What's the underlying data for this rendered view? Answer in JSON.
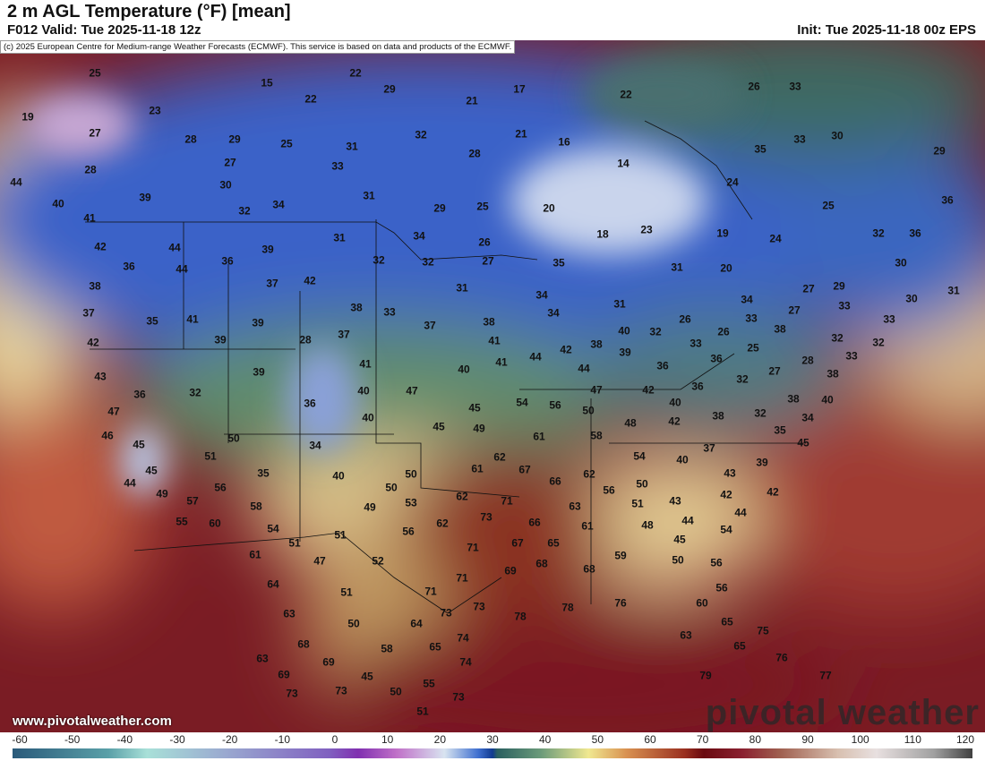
{
  "header": {
    "title": "2 m AGL Temperature (°F) [mean]",
    "valid": "F012 Valid: Tue 2025-11-18 12z",
    "init": "Init: Tue 2025-11-18 00z EPS"
  },
  "copyright": "(c) 2025 European Centre for Medium-range Weather Forecasts (ECMWF). This service is based on data and products of the ECMWF.",
  "footer": {
    "site": "www.pivotalweather.com",
    "logo": "pivotal weather"
  },
  "colorbar": {
    "unit": "°F",
    "ticks": [
      "-60",
      "-50",
      "-40",
      "-30",
      "-20",
      "-10",
      "0",
      "10",
      "20",
      "30",
      "40",
      "50",
      "60",
      "70",
      "80",
      "90",
      "100",
      "110",
      "120"
    ]
  },
  "map": {
    "labels": [
      "25",
      "22",
      "15",
      "29",
      "22",
      "21",
      "17",
      "22",
      "26",
      "33",
      "19",
      "23",
      "27",
      "28",
      "29",
      "25",
      "31",
      "32",
      "21",
      "16",
      "30",
      "33",
      "35",
      "29",
      "28",
      "27",
      "33",
      "28",
      "14",
      "24",
      "30",
      "44",
      "39",
      "31",
      "25",
      "36",
      "40",
      "41",
      "32",
      "34",
      "29",
      "25",
      "20",
      "42",
      "44",
      "39",
      "31",
      "34",
      "26",
      "18",
      "23",
      "19",
      "24",
      "32",
      "36",
      "36",
      "44",
      "36",
      "32",
      "32",
      "27",
      "35",
      "31",
      "20",
      "30",
      "38",
      "37",
      "42",
      "31",
      "34",
      "27",
      "29",
      "31",
      "37",
      "35",
      "41",
      "39",
      "38",
      "33",
      "37",
      "38",
      "34",
      "31",
      "34",
      "27",
      "33",
      "30",
      "33",
      "42",
      "39",
      "28",
      "37",
      "41",
      "42",
      "38",
      "40",
      "32",
      "26",
      "33",
      "26",
      "33",
      "38",
      "39",
      "25",
      "32",
      "32",
      "43",
      "39",
      "41",
      "40",
      "41",
      "44",
      "44",
      "36",
      "36",
      "28",
      "27",
      "33",
      "32",
      "38",
      "36",
      "32",
      "40",
      "47",
      "47",
      "42",
      "36",
      "40",
      "40",
      "38",
      "47",
      "46",
      "36",
      "40",
      "45",
      "54",
      "56",
      "50",
      "42",
      "38",
      "32",
      "48",
      "34",
      "45",
      "49",
      "61",
      "58",
      "35",
      "45",
      "50",
      "37",
      "45",
      "51",
      "34",
      "62",
      "54",
      "40",
      "39",
      "45",
      "35",
      "40",
      "50",
      "61",
      "67",
      "66",
      "62",
      "43",
      "44",
      "56",
      "50",
      "62",
      "71",
      "56",
      "50",
      "43",
      "42",
      "42",
      "49",
      "57",
      "58",
      "49",
      "53",
      "73",
      "63",
      "51",
      "44",
      "55",
      "60",
      "54",
      "62",
      "66",
      "61",
      "48",
      "44",
      "54",
      "51",
      "51",
      "56",
      "71",
      "67",
      "65",
      "45",
      "61",
      "47",
      "52",
      "59",
      "50",
      "56",
      "69",
      "68",
      "68",
      "71",
      "64",
      "51",
      "71",
      "56",
      "63",
      "73",
      "73",
      "78",
      "78",
      "76",
      "60",
      "65",
      "63",
      "50",
      "64",
      "74",
      "68",
      "65",
      "58",
      "75",
      "65",
      "63",
      "69",
      "69",
      "74",
      "76",
      "45",
      "55",
      "50",
      "73",
      "73",
      "73",
      "77",
      "79",
      "51"
    ]
  }
}
